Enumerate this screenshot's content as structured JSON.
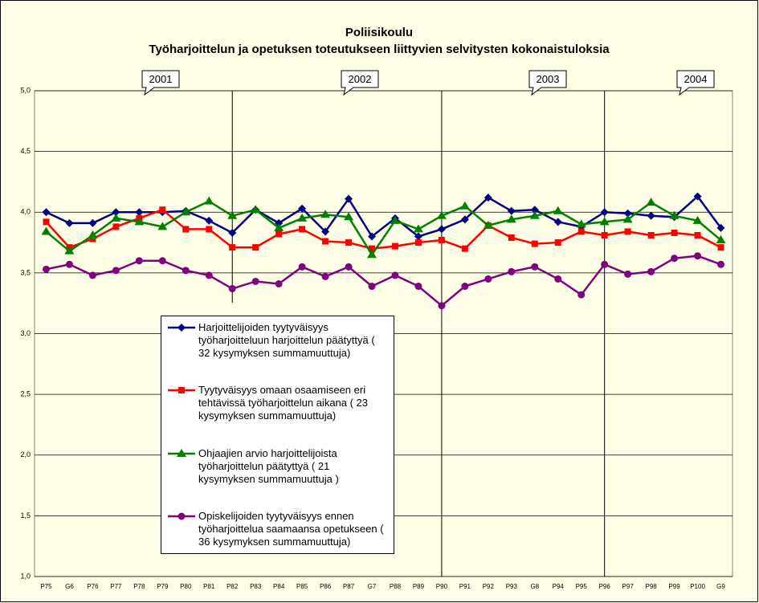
{
  "chart_data": {
    "type": "line",
    "title": "Poliisikoulu",
    "subtitle": "Työharjoittelun ja opetuksen toteutukseen liittyvien selvitysten kokonaistuloksia",
    "annotations": [
      "2001",
      "2002",
      "2003",
      "2004"
    ],
    "categories": [
      "P75",
      "G6",
      "P76",
      "P77",
      "P78",
      "P79",
      "P80",
      "P81",
      "P82",
      "P83",
      "P84",
      "P85",
      "P86",
      "P87",
      "G7",
      "P88",
      "P89",
      "P90",
      "P91",
      "P92",
      "P93",
      "G8",
      "P94",
      "P95",
      "P96",
      "P97",
      "P98",
      "P99",
      "P100",
      "G9"
    ],
    "series": [
      {
        "name": "Harjoittelijoiden tyytyväisyys työharjoitteluun harjoittelun päätyttyä ( 32 kysymyksen summamuuttuja)",
        "color": "#000080",
        "marker": "diamond",
        "values": [
          4.0,
          3.91,
          3.91,
          4.0,
          4.0,
          4.0,
          4.01,
          3.93,
          3.83,
          4.02,
          3.91,
          4.03,
          3.84,
          4.11,
          3.8,
          3.95,
          3.8,
          3.86,
          3.94,
          4.12,
          4.01,
          4.02,
          3.92,
          3.88,
          4.0,
          3.99,
          3.97,
          3.96,
          4.13,
          3.87
        ]
      },
      {
        "name": "Tyytyväisyys omaan osaamiseen eri tehtävissä työharjoittelun aikana ( 23 kysymyksen summamuuttuja)",
        "color": "#ff0000",
        "marker": "square",
        "values": [
          3.92,
          3.71,
          3.78,
          3.88,
          3.95,
          4.02,
          3.86,
          3.86,
          3.71,
          3.71,
          3.82,
          3.86,
          3.76,
          3.75,
          3.7,
          3.72,
          3.75,
          3.77,
          3.7,
          3.89,
          3.79,
          3.74,
          3.75,
          3.84,
          3.81,
          3.84,
          3.81,
          3.83,
          3.81,
          3.71
        ]
      },
      {
        "name": "Ohjaajien arvio harjoittelijoista työharjoittelun päätyttyä ( 21 kysymyksen summamuuttuja )",
        "color": "#008000",
        "marker": "triangle",
        "values": [
          3.84,
          3.68,
          3.81,
          3.95,
          3.92,
          3.88,
          4.0,
          4.09,
          3.97,
          4.02,
          3.87,
          3.95,
          3.98,
          3.96,
          3.65,
          3.93,
          3.86,
          3.97,
          4.05,
          3.89,
          3.94,
          3.97,
          4.01,
          3.9,
          3.92,
          3.94,
          4.08,
          3.97,
          3.93,
          3.77
        ]
      },
      {
        "name": "Opiskelijoiden tyytyväisyys ennen työharjoittelua saamaansa opetukseen ( 36 kysymyksen summamuuttuja)",
        "color": "#800080",
        "marker": "circle",
        "values": [
          3.53,
          3.57,
          3.48,
          3.52,
          3.6,
          3.6,
          3.52,
          3.48,
          3.37,
          3.43,
          3.41,
          3.55,
          3.47,
          3.55,
          3.39,
          3.48,
          3.39,
          3.23,
          3.39,
          3.45,
          3.51,
          3.55,
          3.45,
          3.32,
          3.57,
          3.49,
          3.51,
          3.62,
          3.64,
          3.57
        ]
      }
    ],
    "ylim": [
      1,
      5
    ],
    "yticks": [
      {
        "value": 1,
        "label": "1,0"
      },
      {
        "value": 1.5,
        "label": "1,5"
      },
      {
        "value": 2,
        "label": "2,0"
      },
      {
        "value": 2.5,
        "label": "2,5"
      },
      {
        "value": 3,
        "label": "3,0"
      },
      {
        "value": 3.5,
        "label": "3,5"
      },
      {
        "value": 4,
        "label": "4,0"
      },
      {
        "value": 4.5,
        "label": "4,5"
      },
      {
        "value": 5,
        "label": "5,0"
      }
    ],
    "grid": true
  }
}
